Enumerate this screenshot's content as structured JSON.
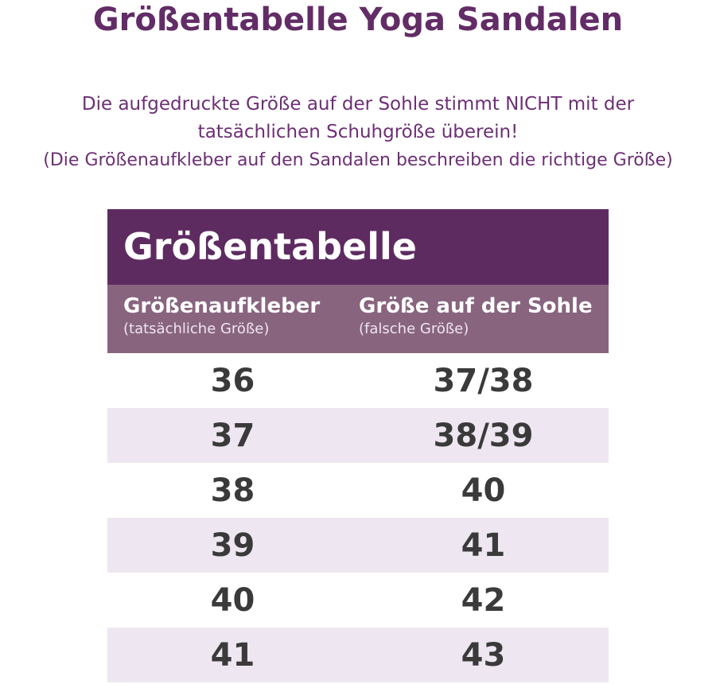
{
  "title": "Größentabelle Yoga Sandalen",
  "notice": {
    "line1": "Die aufgedruckte Größe auf der Sohle stimmt NICHT mit der",
    "line2": "tatsächlichen Schuhgröße überein!",
    "line3": "(Die Größenaufkleber auf den Sandalen beschreiben die richtige Größe)"
  },
  "table": {
    "title": "Größentabelle",
    "headers": [
      {
        "label": "Größenaufkleber",
        "sublabel": "(tatsächliche Größe)"
      },
      {
        "label": "Größe auf der Sohle",
        "sublabel": "(falsche Größe)"
      }
    ],
    "rows": [
      [
        "36",
        "37/38"
      ],
      [
        "37",
        "38/39"
      ],
      [
        "38",
        "40"
      ],
      [
        "39",
        "41"
      ],
      [
        "40",
        "42"
      ],
      [
        "41",
        "43"
      ]
    ]
  },
  "colors": {
    "title": "#622c66",
    "table_header": "#5e2b61",
    "column_header": "#88647f",
    "row_alt": "#eee7f1",
    "value_text": "#3a3a3a"
  }
}
